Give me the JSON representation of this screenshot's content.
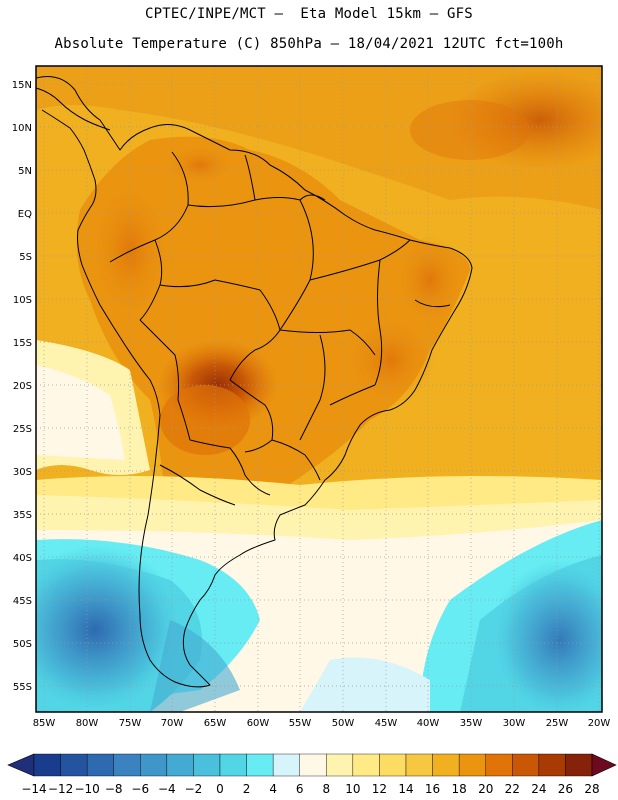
{
  "header": {
    "line1": "CPTEC/INPE/MCT –  Eta Model 15km – GFS",
    "line2": "Absolute Temperature (C) 850hPa – 18/04/2021 12UTC fct=100h"
  },
  "map": {
    "lat_labels": [
      "15N",
      "10N",
      "5N",
      "EQ",
      "5S",
      "10S",
      "15S",
      "20S",
      "25S",
      "30S",
      "35S",
      "40S",
      "45S",
      "50S",
      "55S"
    ],
    "lon_labels": [
      "85W",
      "80W",
      "75W",
      "70W",
      "65W",
      "60W",
      "55W",
      "50W",
      "45W",
      "40W",
      "35W",
      "30W",
      "25W",
      "20W"
    ],
    "grid": true
  },
  "colorbar": {
    "labels": [
      "-14",
      "-12",
      "-10",
      "-8",
      "-6",
      "-4",
      "-2",
      "0",
      "2",
      "4",
      "6",
      "8",
      "10",
      "12",
      "14",
      "16",
      "18",
      "20",
      "22",
      "24",
      "26",
      "28"
    ],
    "colors": [
      "#1a3c8c",
      "#2454a0",
      "#2e6ab0",
      "#3a82c0",
      "#3f96c8",
      "#44aad2",
      "#4ac0dc",
      "#52d6e6",
      "#66ecf2",
      "#d6f4fa",
      "#fff8e6",
      "#fff3b0",
      "#ffea86",
      "#fcdc62",
      "#f6c842",
      "#f0b020",
      "#ea9410",
      "#e07408",
      "#c85806",
      "#a83a04",
      "#86220a"
    ],
    "under_color": "#1f2f7a",
    "over_color": "#6e0a20"
  }
}
